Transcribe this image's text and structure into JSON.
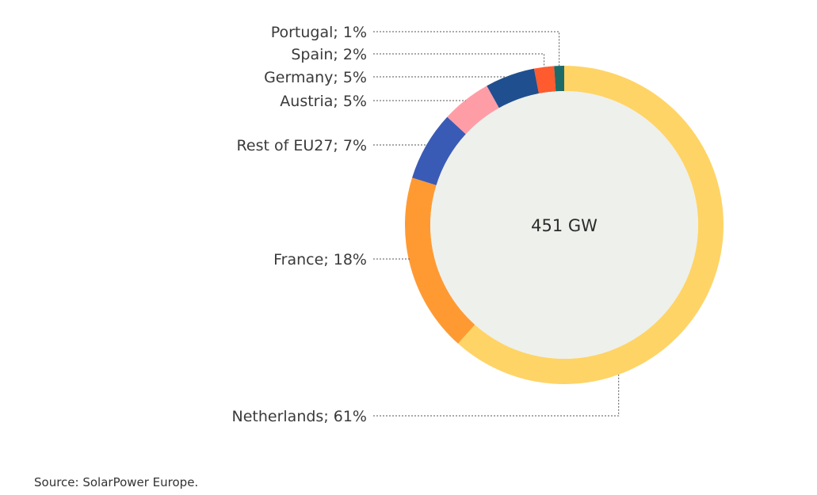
{
  "chart_data": {
    "type": "pie",
    "style": "donut",
    "center_label": "451 GW",
    "slices": [
      {
        "name": "Netherlands",
        "value": 61,
        "label": "Netherlands; 61%",
        "color": "#FFD466"
      },
      {
        "name": "France",
        "value": 18,
        "label": "France; 18%",
        "color": "#FF9A33"
      },
      {
        "name": "Rest of EU27",
        "value": 7,
        "label": "Rest of EU27; 7%",
        "color": "#3A5BB5"
      },
      {
        "name": "Austria",
        "value": 5,
        "label": "Austria; 5%",
        "color": "#FF9DA6"
      },
      {
        "name": "Germany",
        "value": 5,
        "label": "Germany; 5%",
        "color": "#1F4F8F"
      },
      {
        "name": "Spain",
        "value": 2,
        "label": "Spain; 2%",
        "color": "#FF5B2E"
      },
      {
        "name": "Portugal",
        "value": 1,
        "label": "Portugal; 1%",
        "color": "#1D6B68"
      }
    ],
    "inner_color": "#EEF0EC"
  },
  "source": "Source: SolarPower Europe."
}
